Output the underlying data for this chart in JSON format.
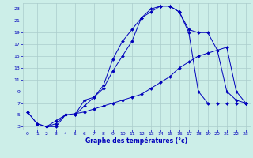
{
  "title": "Graphe des températures (°c)",
  "bg_color": "#cceee8",
  "grid_color": "#aacccc",
  "line_color": "#0000bb",
  "x_min": 0,
  "x_max": 23,
  "y_min": 3,
  "y_max": 23,
  "line1_x": [
    0,
    1,
    2,
    3,
    4,
    5,
    6,
    7,
    8,
    9,
    10,
    11,
    12,
    13,
    14,
    15,
    16,
    17,
    18,
    19,
    20,
    21,
    22,
    23
  ],
  "line1_y": [
    5.5,
    3.5,
    3.0,
    3.0,
    5.0,
    5.0,
    7.5,
    8.0,
    10.0,
    14.5,
    17.5,
    19.5,
    21.5,
    23.0,
    23.5,
    23.5,
    22.5,
    19.5,
    19.0,
    19.0,
    16.0,
    9.0,
    7.5,
    7.0
  ],
  "line2_x": [
    2,
    3,
    4,
    5,
    6,
    7,
    8,
    9,
    10,
    11,
    12,
    13,
    14,
    15,
    16,
    17,
    18,
    19,
    20,
    21,
    22,
    23
  ],
  "line2_y": [
    3.0,
    3.5,
    5.0,
    5.0,
    6.5,
    8.0,
    9.5,
    12.5,
    15.0,
    17.5,
    21.5,
    22.5,
    23.5,
    23.5,
    22.5,
    19.0,
    9.0,
    7.0,
    7.0,
    7.0,
    7.0,
    7.0
  ],
  "line3_x": [
    0,
    1,
    2,
    3,
    4,
    5,
    6,
    7,
    8,
    9,
    10,
    11,
    12,
    13,
    14,
    15,
    16,
    17,
    18,
    19,
    20,
    21,
    22,
    23
  ],
  "line3_y": [
    5.5,
    3.5,
    3.0,
    4.0,
    5.0,
    5.2,
    5.5,
    6.0,
    6.5,
    7.0,
    7.5,
    8.0,
    8.5,
    9.5,
    10.5,
    11.5,
    13.0,
    14.0,
    15.0,
    15.5,
    16.0,
    16.5,
    9.0,
    7.0
  ]
}
